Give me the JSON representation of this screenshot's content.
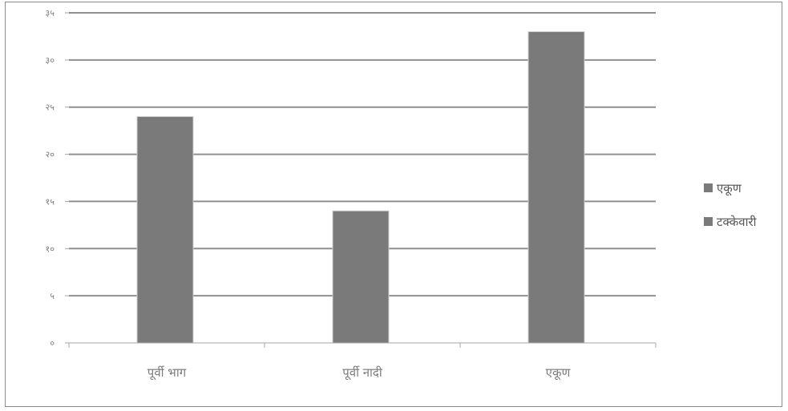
{
  "chart_data": {
    "type": "bar",
    "categories": [
      "पूर्वी भाग",
      "पूर्वी नादी",
      "एकूण"
    ],
    "series": [
      {
        "name": "एकूण",
        "values": [
          24,
          14,
          33
        ],
        "color": "#7a7a7a"
      },
      {
        "name": "टक्केवारी",
        "values": [
          null,
          null,
          null
        ],
        "color": "#7a7a7a"
      }
    ],
    "y_tick_labels": [
      "०",
      "५",
      "१०",
      "१५",
      "२०",
      "२५",
      "३०",
      "३५"
    ],
    "ylim": [
      0,
      35
    ],
    "grid": true,
    "legend_position": "right"
  }
}
